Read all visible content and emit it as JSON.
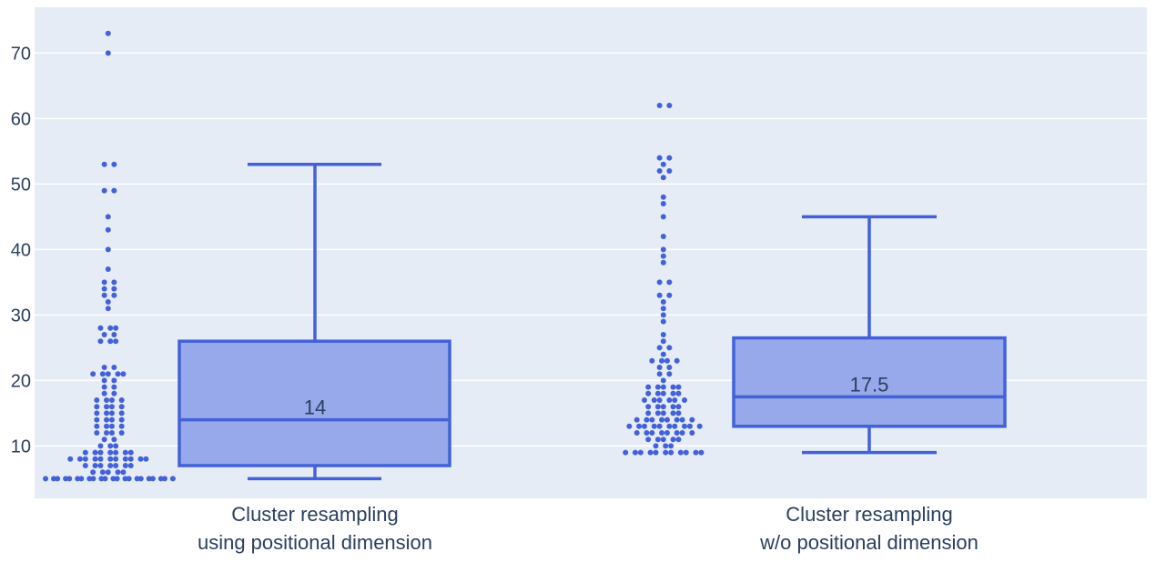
{
  "chart_data": {
    "type": "box",
    "plot_background": "#e5ecf6",
    "grid": true,
    "grid_color": "#ffffff",
    "box_color": "#4361d8",
    "box_fill": "#97a9ea",
    "point_color": "#4361d8",
    "ylim": [
      2,
      77
    ],
    "yticks": [
      10,
      20,
      30,
      40,
      50,
      60,
      70
    ],
    "categories": [
      [
        "Cluster resampling",
        "using positional dimension"
      ],
      [
        "Cluster resampling",
        "w/o positional dimension"
      ]
    ],
    "boxes": [
      {
        "min": 5,
        "q1": 7,
        "median": 14,
        "q3": 26,
        "max": 53,
        "median_label": "14",
        "points": [
          73,
          70,
          53,
          53,
          49,
          49,
          45,
          43,
          40,
          37,
          35,
          35,
          34,
          34,
          33,
          33,
          32,
          31,
          28,
          28,
          28,
          27,
          27,
          26,
          26,
          26,
          22,
          22,
          21,
          21,
          21,
          21,
          21,
          20,
          20,
          19,
          19,
          18,
          18,
          17,
          17,
          17,
          17,
          16,
          16,
          16,
          16,
          15,
          15,
          15,
          15,
          14,
          14,
          14,
          14,
          13,
          13,
          13,
          13,
          12,
          12,
          12,
          12,
          11,
          11,
          10,
          10,
          10,
          9,
          9,
          9,
          9,
          9,
          9,
          9,
          8,
          8,
          8,
          8,
          8,
          8,
          8,
          8,
          8,
          8,
          8,
          7,
          7,
          7,
          7,
          7,
          7,
          7,
          6,
          6,
          6,
          6,
          6,
          5,
          5,
          5,
          5,
          5,
          5,
          5,
          5,
          5,
          5,
          5,
          5,
          5,
          5,
          5,
          5,
          5,
          5,
          5,
          5,
          5,
          5
        ]
      },
      {
        "min": 9,
        "q1": 13,
        "median": 17.5,
        "q3": 26.5,
        "max": 45,
        "median_label": "17.5",
        "points": [
          62,
          62,
          54,
          54,
          53,
          52,
          52,
          51,
          48,
          47,
          45,
          42,
          40,
          39,
          38,
          35,
          35,
          33,
          33,
          32,
          31,
          30,
          29,
          27,
          26,
          25,
          25,
          24,
          23,
          23,
          23,
          23,
          22,
          22,
          21,
          21,
          20,
          19,
          19,
          19,
          19,
          19,
          18,
          18,
          18,
          18,
          18,
          17,
          17,
          17,
          17,
          17,
          17,
          16,
          16,
          16,
          16,
          16,
          15,
          15,
          15,
          15,
          15,
          14,
          14,
          14,
          14,
          14,
          14,
          14,
          14,
          13,
          13,
          13,
          13,
          13,
          13,
          13,
          13,
          13,
          13,
          12,
          12,
          12,
          12,
          12,
          12,
          12,
          12,
          11,
          11,
          11,
          11,
          11,
          10,
          10,
          10,
          9,
          9,
          9,
          9,
          9,
          9,
          9,
          9,
          9,
          9,
          9
        ]
      }
    ]
  }
}
